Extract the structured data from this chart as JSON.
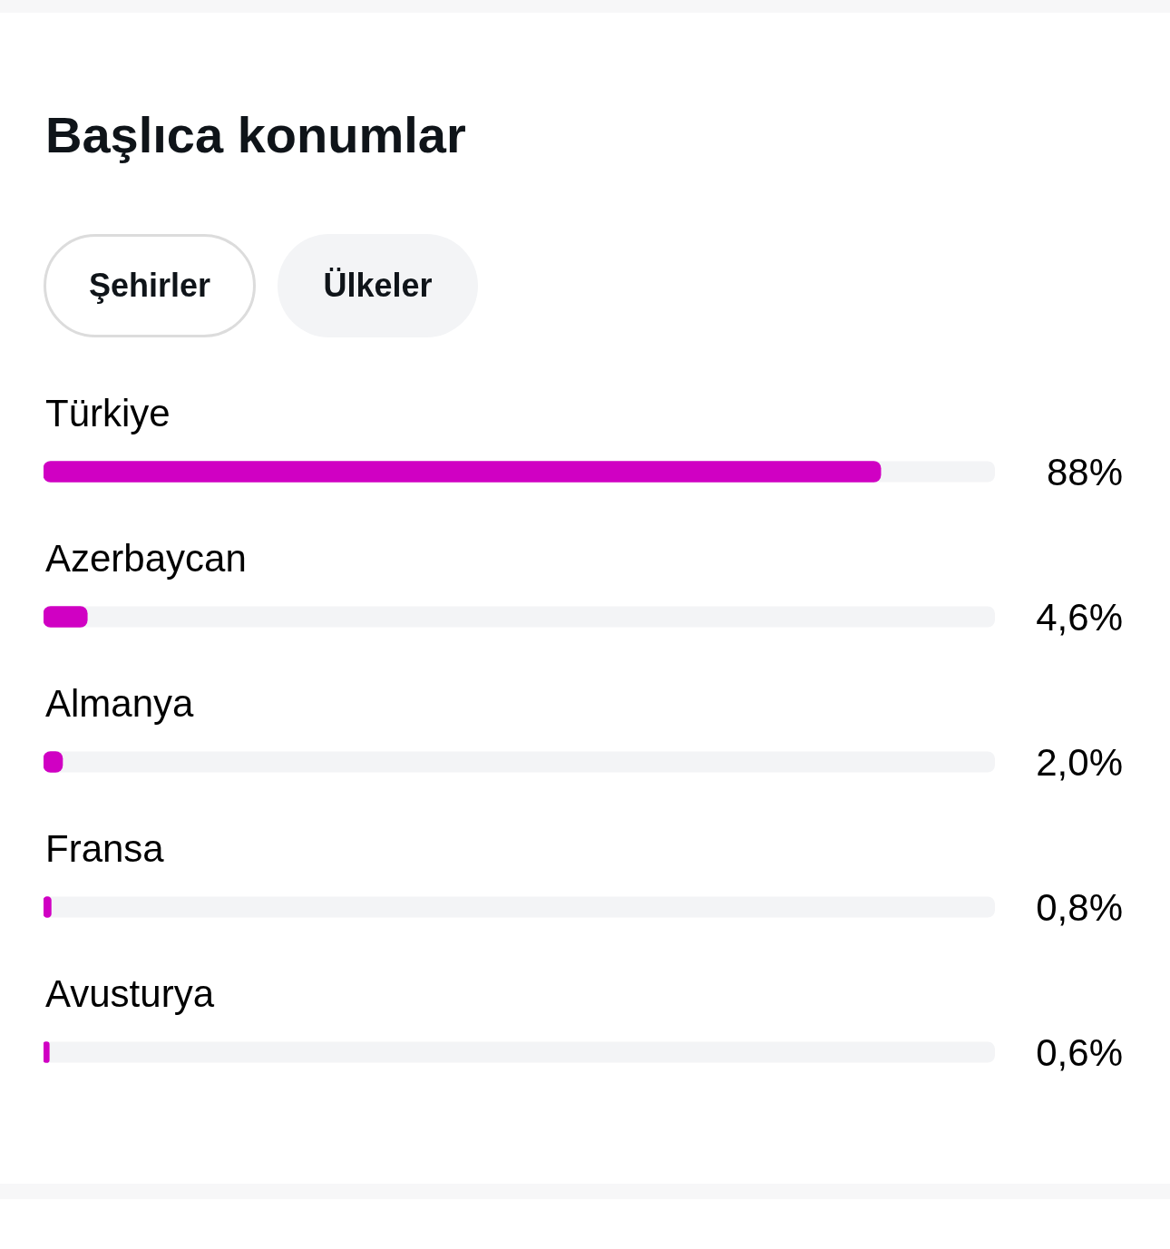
{
  "chart_data": {
    "type": "bar",
    "orientation": "horizontal",
    "title": "Başlıca konumlar",
    "annotations": [
      "Şehirler",
      "Ülkeler"
    ],
    "categories": [
      "Türkiye",
      "Azerbaycan",
      "Almanya",
      "Fransa",
      "Avusturya"
    ],
    "values": [
      88,
      4.6,
      2.0,
      0.8,
      0.6
    ],
    "value_labels": [
      "88%",
      "4,6%",
      "2,0%",
      "0,8%",
      "0,6%"
    ],
    "color": "#d000c3",
    "xlim": [
      0,
      100
    ],
    "tick_labels": "y",
    "legend": false,
    "grid": false
  }
}
